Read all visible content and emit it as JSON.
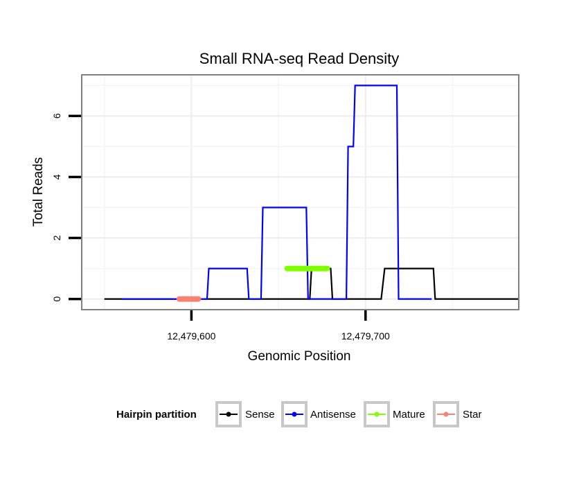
{
  "chart_data": {
    "type": "line",
    "title": "Small RNA-seq Read Density",
    "xlabel": "Genomic Position",
    "ylabel": "Total Reads",
    "xlim": [
      12479537,
      12479788
    ],
    "ylim": [
      -0.35,
      7.35
    ],
    "x_ticks": [
      12479600,
      12479700
    ],
    "x_tick_labels": [
      "12,479,600",
      "12,479,700"
    ],
    "y_ticks": [
      0,
      2,
      4,
      6
    ],
    "y_tick_labels": [
      "0",
      "2",
      "4",
      "6"
    ],
    "grid": true,
    "series": [
      {
        "name": "Sense",
        "color": "#000000",
        "points": [
          [
            12479550,
            0
          ],
          [
            12479668,
            0
          ],
          [
            12479669,
            1
          ],
          [
            12479675,
            1
          ],
          [
            12479680,
            1
          ],
          [
            12479681,
            0
          ],
          [
            12479709,
            0
          ],
          [
            12479711,
            1
          ],
          [
            12479739,
            1
          ],
          [
            12479740,
            0
          ],
          [
            12479800,
            0
          ]
        ]
      },
      {
        "name": "Antisense",
        "color": "#0000FF",
        "points": [
          [
            12479560,
            0
          ],
          [
            12479609,
            0
          ],
          [
            12479610,
            1
          ],
          [
            12479632,
            1
          ],
          [
            12479633,
            0
          ],
          [
            12479640,
            0
          ],
          [
            12479641,
            3
          ],
          [
            12479666,
            3
          ],
          [
            12479667,
            0
          ],
          [
            12479689,
            0
          ],
          [
            12479690,
            5
          ],
          [
            12479693,
            5
          ],
          [
            12479694,
            7
          ],
          [
            12479718,
            7
          ],
          [
            12479719,
            0
          ],
          [
            12479738,
            0
          ]
        ]
      },
      {
        "name": "Mature",
        "color": "#7FFF00",
        "points": [
          [
            12479655,
            1
          ],
          [
            12479678,
            1
          ]
        ]
      },
      {
        "name": "Star",
        "color": "#FA8072",
        "points": [
          [
            12479593,
            0
          ],
          [
            12479604,
            0
          ]
        ]
      }
    ],
    "legend": {
      "title": "Hairpin partition",
      "position": "bottom",
      "entries": [
        "Sense",
        "Antisense",
        "Mature",
        "Star"
      ]
    }
  }
}
